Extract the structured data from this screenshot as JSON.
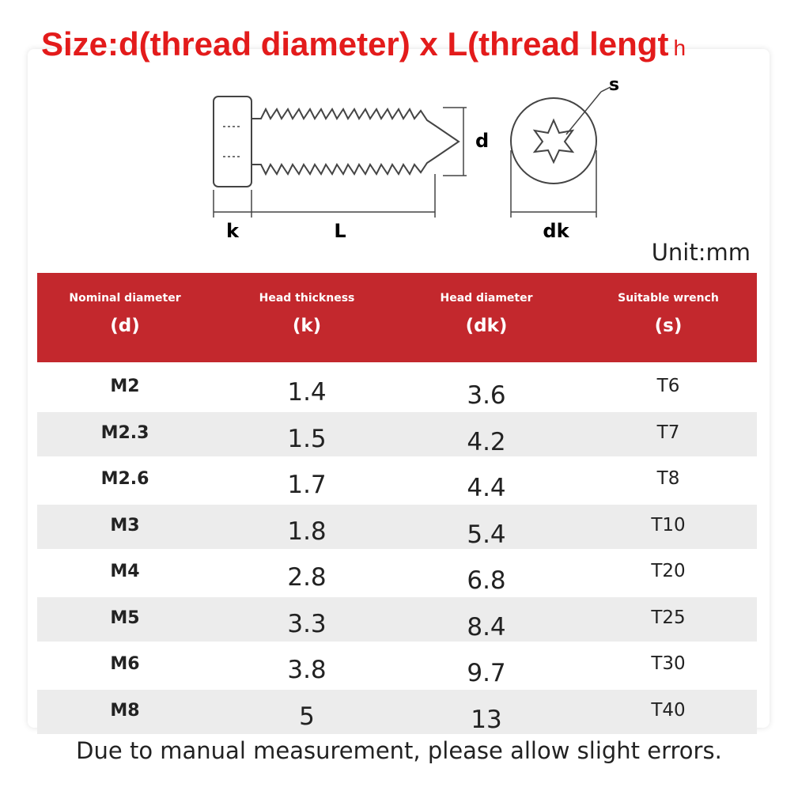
{
  "title": "Size:d(thread diameter) x L(thread lengt",
  "title_tail": "h",
  "diagram": {
    "s": "s",
    "d": "d",
    "k": "k",
    "L": "L",
    "dk": "dk"
  },
  "unit": "Unit:mm",
  "table": {
    "headers": [
      [
        "Nominal diameter",
        "(d)"
      ],
      [
        "Head thickness",
        "(k)"
      ],
      [
        "Head diameter",
        "(dk)"
      ],
      [
        "Suitable wrench",
        "(s)"
      ]
    ],
    "rows": [
      [
        "M2",
        1.4,
        3.6,
        "T6"
      ],
      [
        "M2.3",
        1.5,
        4.2,
        "T7"
      ],
      [
        "M2.6",
        1.7,
        4.4,
        "T8"
      ],
      [
        "M3",
        1.8,
        5.4,
        "T10"
      ],
      [
        "M4",
        2.8,
        6.8,
        "T20"
      ],
      [
        "M5",
        3.3,
        8.4,
        "T25"
      ],
      [
        "M6",
        3.8,
        9.7,
        "T30"
      ],
      [
        "M8",
        5,
        13,
        "T40"
      ]
    ]
  },
  "footnote": "Due to manual measurement, please allow slight errors."
}
